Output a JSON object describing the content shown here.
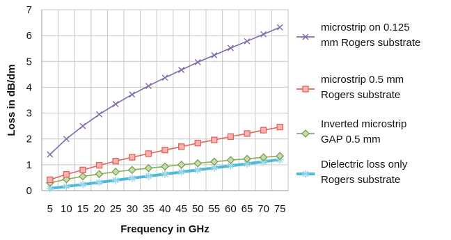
{
  "chart_data": {
    "type": "line",
    "title": "",
    "xlabel": "Frequency in GHz",
    "ylabel": "Loss in dB/dm",
    "ylim": [
      0,
      7
    ],
    "yticks": [
      0,
      1,
      2,
      3,
      4,
      5,
      6,
      7
    ],
    "grid": true,
    "legend_position": "right",
    "categories": [
      "5",
      "10",
      "15",
      "20",
      "25",
      "30",
      "35",
      "40",
      "45",
      "50",
      "55",
      "60",
      "65",
      "70",
      "75"
    ],
    "series": [
      {
        "name_lines": [
          "microstrip on 0.125",
          "mm Rogers substrate"
        ],
        "color": "#8068a8",
        "marker": "x",
        "values": [
          1.4,
          2.0,
          2.5,
          2.95,
          3.35,
          3.72,
          4.05,
          4.37,
          4.67,
          4.97,
          5.24,
          5.52,
          5.78,
          6.05,
          6.32
        ]
      },
      {
        "name_lines": [
          "microstrip 0.5 mm",
          "Rogers substrate"
        ],
        "color": "#e8605a",
        "marker": "square",
        "values": [
          0.42,
          0.63,
          0.8,
          0.98,
          1.14,
          1.29,
          1.43,
          1.57,
          1.7,
          1.84,
          1.96,
          2.09,
          2.21,
          2.34,
          2.46
        ]
      },
      {
        "name_lines": [
          "Inverted microstrip",
          "GAP 0.5 mm"
        ],
        "color": "#8cae52",
        "marker": "diamond",
        "values": [
          0.3,
          0.44,
          0.55,
          0.64,
          0.73,
          0.8,
          0.87,
          0.93,
          1.0,
          1.06,
          1.12,
          1.18,
          1.23,
          1.29,
          1.34
        ]
      },
      {
        "name_lines": [
          "Dielectric loss only",
          "Rogers substrate"
        ],
        "color": "#4bbad9",
        "marker": "star",
        "values": [
          0.08,
          0.16,
          0.24,
          0.32,
          0.4,
          0.48,
          0.56,
          0.64,
          0.72,
          0.8,
          0.88,
          0.96,
          1.04,
          1.12,
          1.2
        ]
      }
    ]
  }
}
